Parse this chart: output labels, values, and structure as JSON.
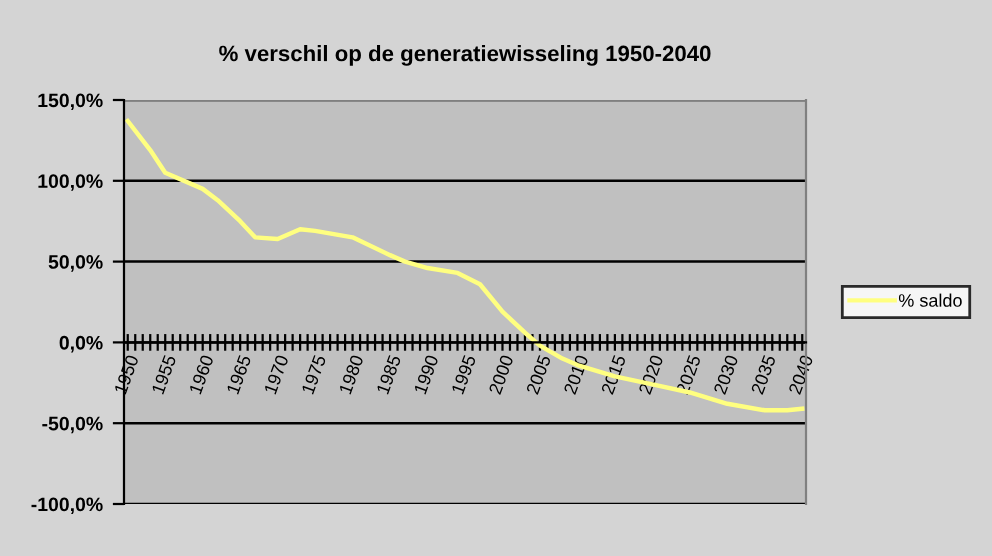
{
  "chart_data": {
    "type": "line",
    "title": "% verschil op de generatiewisseling 1950-2040",
    "x": [
      1950,
      1953,
      1955,
      1960,
      1962,
      1965,
      1967,
      1970,
      1973,
      1975,
      1980,
      1985,
      1987,
      1990,
      1994,
      1997,
      2000,
      2003,
      2005,
      2008,
      2010,
      2015,
      2020,
      2025,
      2030,
      2035,
      2038,
      2040
    ],
    "series": [
      {
        "name": "% saldo",
        "color": "#ffff80",
        "values": [
          137,
          119,
          105,
          95,
          88,
          75,
          65,
          64,
          70,
          69,
          65,
          54,
          50,
          46,
          43,
          36,
          19,
          6,
          -2,
          -10,
          -14,
          -21,
          -26,
          -31,
          -38,
          -42,
          -42,
          -41
        ]
      }
    ],
    "xlim": [
      1949.5,
      2040.5
    ],
    "xticks": [
      1950,
      {
        "value": 1951,
        "label": null
      },
      {
        "value": 1952,
        "label": null
      },
      {
        "value": 1953,
        "label": null
      },
      {
        "value": 1954,
        "label": null
      },
      1955,
      {
        "value": 1956,
        "label": null
      },
      {
        "value": 1957,
        "label": null
      },
      {
        "value": 1958,
        "label": null
      },
      {
        "value": 1959,
        "label": null
      },
      1960,
      {
        "value": 1961,
        "label": null
      },
      {
        "value": 1962,
        "label": null
      },
      {
        "value": 1963,
        "label": null
      },
      {
        "value": 1964,
        "label": null
      },
      1965,
      {
        "value": 1966,
        "label": null
      },
      {
        "value": 1967,
        "label": null
      },
      {
        "value": 1968,
        "label": null
      },
      {
        "value": 1969,
        "label": null
      },
      1970,
      {
        "value": 1971,
        "label": null
      },
      {
        "value": 1972,
        "label": null
      },
      {
        "value": 1973,
        "label": null
      },
      {
        "value": 1974,
        "label": null
      },
      1975,
      {
        "value": 1976,
        "label": null
      },
      {
        "value": 1977,
        "label": null
      },
      {
        "value": 1978,
        "label": null
      },
      {
        "value": 1979,
        "label": null
      },
      1980,
      {
        "value": 1981,
        "label": null
      },
      {
        "value": 1982,
        "label": null
      },
      {
        "value": 1983,
        "label": null
      },
      {
        "value": 1984,
        "label": null
      },
      1985,
      {
        "value": 1986,
        "label": null
      },
      {
        "value": 1987,
        "label": null
      },
      {
        "value": 1988,
        "label": null
      },
      {
        "value": 1989,
        "label": null
      },
      1990,
      {
        "value": 1991,
        "label": null
      },
      {
        "value": 1992,
        "label": null
      },
      {
        "value": 1993,
        "label": null
      },
      {
        "value": 1994,
        "label": null
      },
      1995,
      {
        "value": 1996,
        "label": null
      },
      {
        "value": 1997,
        "label": null
      },
      {
        "value": 1998,
        "label": null
      },
      {
        "value": 1999,
        "label": null
      },
      2000,
      {
        "value": 2001,
        "label": null
      },
      {
        "value": 2002,
        "label": null
      },
      {
        "value": 2003,
        "label": null
      },
      {
        "value": 2004,
        "label": null
      },
      2005,
      {
        "value": 2006,
        "label": null
      },
      {
        "value": 2007,
        "label": null
      },
      {
        "value": 2008,
        "label": null
      },
      {
        "value": 2009,
        "label": null
      },
      2010,
      {
        "value": 2011,
        "label": null
      },
      {
        "value": 2012,
        "label": null
      },
      {
        "value": 2013,
        "label": null
      },
      {
        "value": 2014,
        "label": null
      },
      2015,
      {
        "value": 2016,
        "label": null
      },
      {
        "value": 2017,
        "label": null
      },
      {
        "value": 2018,
        "label": null
      },
      {
        "value": 2019,
        "label": null
      },
      2020,
      {
        "value": 2021,
        "label": null
      },
      {
        "value": 2022,
        "label": null
      },
      {
        "value": 2023,
        "label": null
      },
      {
        "value": 2024,
        "label": null
      },
      2025,
      {
        "value": 2026,
        "label": null
      },
      {
        "value": 2027,
        "label": null
      },
      {
        "value": 2028,
        "label": null
      },
      {
        "value": 2029,
        "label": null
      },
      2030,
      {
        "value": 2031,
        "label": null
      },
      {
        "value": 2032,
        "label": null
      },
      {
        "value": 2033,
        "label": null
      },
      {
        "value": 2034,
        "label": null
      },
      2035,
      {
        "value": 2036,
        "label": null
      },
      {
        "value": 2037,
        "label": null
      },
      {
        "value": 2038,
        "label": null
      },
      {
        "value": 2039,
        "label": null
      },
      2040
    ],
    "ylim": [
      -100,
      150
    ],
    "yticks": [
      {
        "value": -100,
        "label": "-100,0%"
      },
      {
        "value": -50,
        "label": "-50,0%"
      },
      {
        "value": 0,
        "label": "0,0%"
      },
      {
        "value": 50,
        "label": "50,0%"
      },
      {
        "value": 100,
        "label": "100,0%"
      },
      {
        "value": 150,
        "label": "150,0%"
      }
    ],
    "grid": "y",
    "legend": "right",
    "marker": "none",
    "line_style": "solid"
  }
}
